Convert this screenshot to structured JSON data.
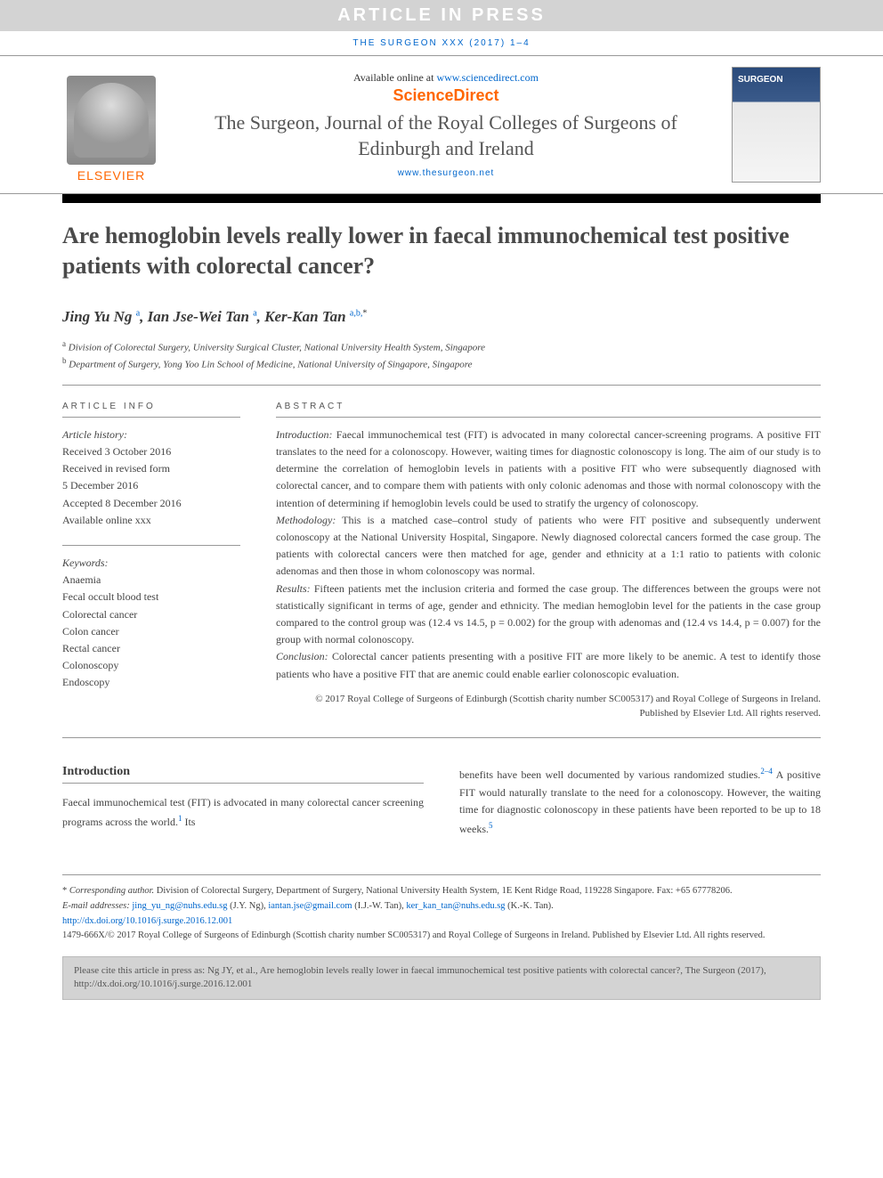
{
  "banner": "ARTICLE IN PRESS",
  "journalRef": "THE SURGEON XXX (2017) 1–4",
  "header": {
    "elsevier": "ELSEVIER",
    "availableText": "Available online at ",
    "availableLink": "www.sciencedirect.com",
    "scienceDirect": "ScienceDirect",
    "journalTitle": "The Surgeon, Journal of the Royal Colleges of Surgeons of Edinburgh and Ireland",
    "journalUrl": "www.thesurgeon.net"
  },
  "title": "Are hemoglobin levels really lower in faecal immunochemical test positive patients with colorectal cancer?",
  "authorsHtml": "Jing Yu Ng <sup>a</sup>, Ian Jse-Wei Tan <sup>a</sup>, Ker-Kan Tan <sup>a,b,</sup><sup class='corr'>*</sup>",
  "affiliations": [
    {
      "sup": "a",
      "text": "Division of Colorectal Surgery, University Surgical Cluster, National University Health System, Singapore"
    },
    {
      "sup": "b",
      "text": "Department of Surgery, Yong Yoo Lin School of Medicine, National University of Singapore, Singapore"
    }
  ],
  "articleInfo": {
    "heading": "ARTICLE INFO",
    "historyLabel": "Article history:",
    "history": [
      "Received 3 October 2016",
      "Received in revised form",
      "5 December 2016",
      "Accepted 8 December 2016",
      "Available online xxx"
    ],
    "keywordsLabel": "Keywords:",
    "keywords": [
      "Anaemia",
      "Fecal occult blood test",
      "Colorectal cancer",
      "Colon cancer",
      "Rectal cancer",
      "Colonoscopy",
      "Endoscopy"
    ]
  },
  "abstract": {
    "heading": "ABSTRACT",
    "sections": [
      {
        "label": "Introduction:",
        "text": "Faecal immunochemical test (FIT) is advocated in many colorectal cancer-screening programs. A positive FIT translates to the need for a colonoscopy. However, waiting times for diagnostic colonoscopy is long. The aim of our study is to determine the correlation of hemoglobin levels in patients with a positive FIT who were subsequently diagnosed with colorectal cancer, and to compare them with patients with only colonic adenomas and those with normal colonoscopy with the intention of determining if hemoglobin levels could be used to stratify the urgency of colonoscopy."
      },
      {
        "label": "Methodology:",
        "text": "This is a matched case–control study of patients who were FIT positive and subsequently underwent colonoscopy at the National University Hospital, Singapore. Newly diagnosed colorectal cancers formed the case group. The patients with colorectal cancers were then matched for age, gender and ethnicity at a 1:1 ratio to patients with colonic adenomas and then those in whom colonoscopy was normal."
      },
      {
        "label": "Results:",
        "text": "Fifteen patients met the inclusion criteria and formed the case group. The differences between the groups were not statistically significant in terms of age, gender and ethnicity. The median hemoglobin level for the patients in the case group compared to the control group was (12.4 vs 14.5, p = 0.002) for the group with adenomas and (12.4 vs 14.4, p = 0.007) for the group with normal colonoscopy."
      },
      {
        "label": "Conclusion:",
        "text": "Colorectal cancer patients presenting with a positive FIT are more likely to be anemic. A test to identify those patients who have a positive FIT that are anemic could enable earlier colonoscopic evaluation."
      }
    ],
    "copyright": "© 2017 Royal College of Surgeons of Edinburgh (Scottish charity number SC005317) and Royal College of Surgeons in Ireland. Published by Elsevier Ltd. All rights reserved."
  },
  "intro": {
    "heading": "Introduction",
    "col1": "Faecal immunochemical test (FIT) is advocated in many colorectal cancer screening programs across the world.<sup>1</sup> Its",
    "col2": "benefits have been well documented by various randomized studies.<sup>2–4</sup> A positive FIT would naturally translate to the need for a colonoscopy. However, the waiting time for diagnostic colonoscopy in these patients have been reported to be up to 18 weeks.<sup>5</sup>"
  },
  "footnotes": {
    "corresponding": "* <span class='label'>Corresponding author.</span> Division of Colorectal Surgery, Department of Surgery, National University Health System, 1E Kent Ridge Road, 119228 Singapore. Fax: +65 67778206.",
    "emailsLabel": "E-mail addresses:",
    "emails": "<a>jing_yu_ng@nuhs.edu.sg</a> (J.Y. Ng), <a>iantan.jse@gmail.com</a> (I.J.-W. Tan), <a>ker_kan_tan@nuhs.edu.sg</a> (K.-K. Tan).",
    "doi": "http://dx.doi.org/10.1016/j.surge.2016.12.001",
    "issn": "1479-666X/© 2017 Royal College of Surgeons of Edinburgh (Scottish charity number SC005317) and Royal College of Surgeons in Ireland. Published by Elsevier Ltd. All rights reserved."
  },
  "citeBox": "Please cite this article in press as: Ng JY, et al., Are hemoglobin levels really lower in faecal immunochemical test positive patients with colorectal cancer?, The Surgeon (2017), http://dx.doi.org/10.1016/j.surge.2016.12.001"
}
